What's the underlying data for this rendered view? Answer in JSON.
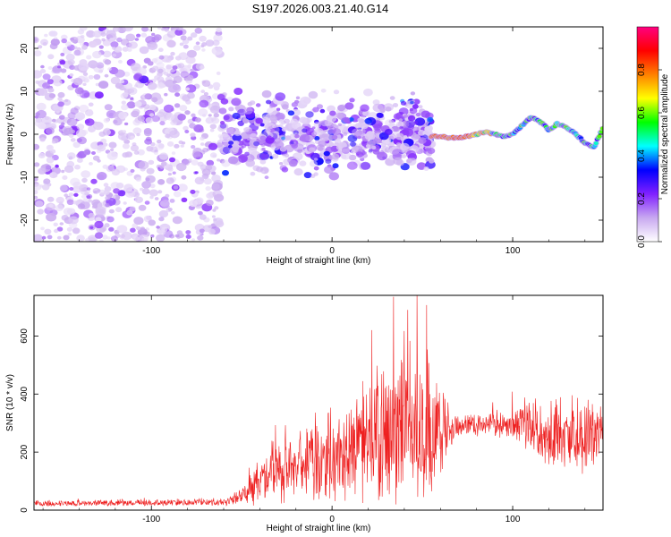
{
  "title": "S197.2026.003.21.40.G14",
  "chart_data": [
    {
      "type": "heatmap",
      "xlabel": "Height of straight line (km)",
      "ylabel": "Frequency (Hz)",
      "xlim": [
        -165,
        150
      ],
      "ylim": [
        -25,
        25
      ],
      "xticks": [
        -100,
        0,
        100
      ],
      "yticks": [
        -20,
        -10,
        0,
        10,
        20
      ],
      "colorbar": {
        "label": "Normalized spectral amplitude",
        "range": [
          0,
          1
        ],
        "ticks": [
          "0.0",
          "0.2",
          "0.4",
          "0.6",
          "0.8"
        ],
        "colors": [
          "#ffffff",
          "#c8a8f0",
          "#8020ff",
          "#0000ff",
          "#00ffff",
          "#00ff00",
          "#ffff00",
          "#ff8000",
          "#ff0000",
          "#ff0080"
        ]
      },
      "regions": [
        {
          "name": "noise",
          "x_range": [
            -165,
            -62
          ],
          "description_values": {
            "freq_spread": 25,
            "amplitude": 0.15
          }
        },
        {
          "name": "scattered-signal",
          "x_range": [
            -62,
            55
          ],
          "freq_center": 0,
          "freq_spread": 12,
          "amplitude": 0.25
        },
        {
          "name": "tracking-ridge",
          "x_range": [
            55,
            150
          ],
          "amplitude_peak": 0.9
        }
      ],
      "ridge": [
        {
          "x": 55,
          "y": -0.5
        },
        {
          "x": 60,
          "y": -0.5
        },
        {
          "x": 65,
          "y": -0.8
        },
        {
          "x": 70,
          "y": -0.8
        },
        {
          "x": 75,
          "y": -0.5
        },
        {
          "x": 80,
          "y": 0.0
        },
        {
          "x": 85,
          "y": 0.5
        },
        {
          "x": 90,
          "y": 0.0
        },
        {
          "x": 95,
          "y": -0.5
        },
        {
          "x": 100,
          "y": 0.0
        },
        {
          "x": 105,
          "y": 2.0
        },
        {
          "x": 110,
          "y": 4.0
        },
        {
          "x": 115,
          "y": 3.0
        },
        {
          "x": 120,
          "y": 1.0
        },
        {
          "x": 125,
          "y": 2.5
        },
        {
          "x": 130,
          "y": 1.5
        },
        {
          "x": 135,
          "y": 0.0
        },
        {
          "x": 140,
          "y": -2.0
        },
        {
          "x": 145,
          "y": -3.0
        },
        {
          "x": 150,
          "y": 1.5
        }
      ]
    },
    {
      "type": "line",
      "xlabel": "Height of straight line (km)",
      "ylabel": "SNR (10 * v/v)",
      "xlim": [
        -165,
        150
      ],
      "ylim": [
        0,
        740
      ],
      "xticks": [
        -100,
        0,
        100
      ],
      "yticks": [
        0,
        200,
        400,
        600
      ],
      "color": "#ee2020",
      "envelope": [
        {
          "x": -165,
          "base": 20,
          "spread": 15
        },
        {
          "x": -60,
          "base": 25,
          "spread": 20
        },
        {
          "x": -50,
          "base": 40,
          "spread": 40
        },
        {
          "x": -45,
          "base": 70,
          "spread": 120
        },
        {
          "x": -30,
          "base": 100,
          "spread": 160
        },
        {
          "x": -10,
          "base": 130,
          "spread": 220
        },
        {
          "x": 10,
          "base": 160,
          "spread": 260
        },
        {
          "x": 25,
          "base": 190,
          "spread": 330
        },
        {
          "x": 40,
          "base": 210,
          "spread": 420
        },
        {
          "x": 55,
          "base": 220,
          "spread": 400
        },
        {
          "x": 68,
          "base": 280,
          "spread": 60
        },
        {
          "x": 90,
          "base": 290,
          "spread": 70
        },
        {
          "x": 100,
          "base": 270,
          "spread": 110
        },
        {
          "x": 120,
          "base": 240,
          "spread": 180
        },
        {
          "x": 140,
          "base": 220,
          "spread": 200
        },
        {
          "x": 150,
          "base": 250,
          "spread": 180
        }
      ],
      "peaks": [
        {
          "x": 34,
          "y": 735
        },
        {
          "x": 47,
          "y": 740
        },
        {
          "x": 42,
          "y": 690
        },
        {
          "x": 22,
          "y": 620
        }
      ]
    }
  ]
}
